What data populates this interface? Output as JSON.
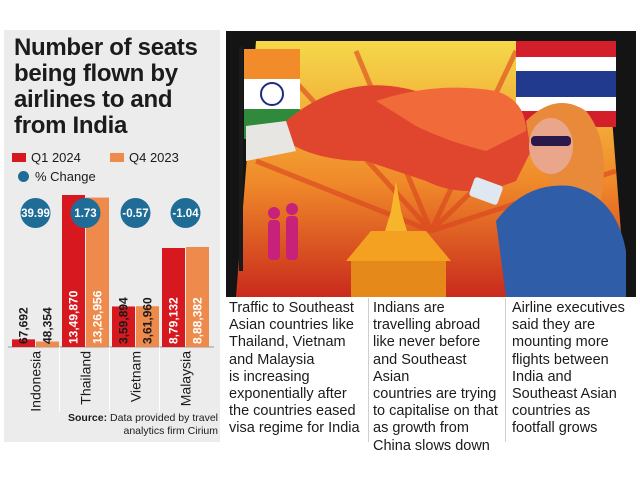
{
  "title_lines": [
    "Number of seats",
    "being flown by",
    "airlines to and",
    "from India"
  ],
  "legend": {
    "q1": "Q1 2024",
    "q4": "Q4 2023",
    "change": "% Change"
  },
  "colors": {
    "q1": "#d7181f",
    "q4": "#ee8a4c",
    "change": "#1f6d96",
    "panel": "#ececec"
  },
  "chart_data": {
    "type": "bar",
    "title": "Number of seats being flown by airlines to and from India",
    "categories": [
      "Indonesia",
      "Thailand",
      "Vietnam",
      "Malaysia"
    ],
    "series": [
      {
        "name": "Q1 2024",
        "values": [
          67692,
          1349870,
          359894,
          879132
        ]
      },
      {
        "name": "Q4 2023",
        "values": [
          48354,
          1326956,
          361960,
          888382
        ]
      }
    ],
    "value_labels": {
      "Q1 2024": [
        "67,692",
        "13,49,870",
        "3,59,894",
        "8,79,132"
      ],
      "Q4 2023": [
        "48,354",
        "13,26,956",
        "3,61,960",
        "8,88,382"
      ]
    },
    "pct_change": [
      39.99,
      1.73,
      -0.57,
      -1.04
    ],
    "pct_change_labels": [
      "39.99",
      "1.73",
      "-0.57",
      "-1.04"
    ],
    "ylim": [
      0,
      1349870
    ]
  },
  "source": {
    "label": "Source:",
    "text": "Data provided by travel analytics firm Cirium"
  },
  "columns": [
    [
      "Traffic to Southeast",
      "Asian countries like",
      "Thailand, Vietnam",
      "and Malaysia",
      "is increasing",
      "exponentially after",
      "the countries eased",
      "visa regime for India"
    ],
    [
      "Indians are",
      "travelling abroad",
      "like never before",
      "and Southeast Asian",
      "countries are trying",
      "to capitalise on that",
      "as growth from",
      "China slows down"
    ],
    [
      "Airline executives",
      "said they are",
      "mounting more",
      "flights between",
      "India and",
      "Southeast Asian",
      "countries as",
      "footfall grows"
    ]
  ]
}
